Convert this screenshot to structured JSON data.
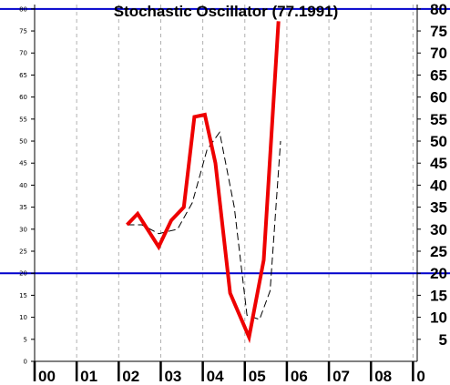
{
  "chart_data": {
    "type": "line",
    "title": "Stochastic Oscillator (77.1991)",
    "xlabel": "",
    "ylabel": "",
    "x_tick_labels": [
      "00",
      "01",
      "02",
      "03",
      "04",
      "05",
      "06",
      "07",
      "08",
      "0"
    ],
    "y_ticks_left": [
      0,
      5,
      10,
      15,
      20,
      25,
      30,
      35,
      40,
      45,
      50,
      55,
      60,
      65,
      70,
      75,
      80
    ],
    "y_ticks_right": [
      5,
      10,
      15,
      20,
      25,
      30,
      35,
      40,
      45,
      50,
      55,
      60,
      65,
      70,
      75,
      80
    ],
    "ylim": [
      0,
      81
    ],
    "xlim": [
      2000,
      2009.1
    ],
    "reference_lines": [
      {
        "y": 80,
        "color": "#0000cc"
      },
      {
        "y": 20,
        "color": "#0000cc"
      }
    ],
    "series": [
      {
        "style": "solid",
        "color": "#ee0000",
        "x": [
          2002.2,
          2002.45,
          2002.95,
          2003.25,
          2003.55,
          2003.8,
          2004.05,
          2004.3,
          2004.65,
          2005.1,
          2005.45,
          2005.8
        ],
        "y": [
          31,
          33.5,
          26,
          32,
          35,
          55.5,
          56,
          45,
          15.5,
          5.5,
          23,
          77.2
        ]
      },
      {
        "style": "dashed",
        "color": "#000000",
        "x": [
          2002.2,
          2002.55,
          2002.95,
          2003.4,
          2003.75,
          2004.1,
          2004.4,
          2004.75,
          2005.05,
          2005.35,
          2005.6,
          2005.85
        ],
        "y": [
          31,
          31,
          29,
          30,
          36,
          48,
          52,
          35,
          10.5,
          9.5,
          16,
          50
        ]
      }
    ]
  }
}
